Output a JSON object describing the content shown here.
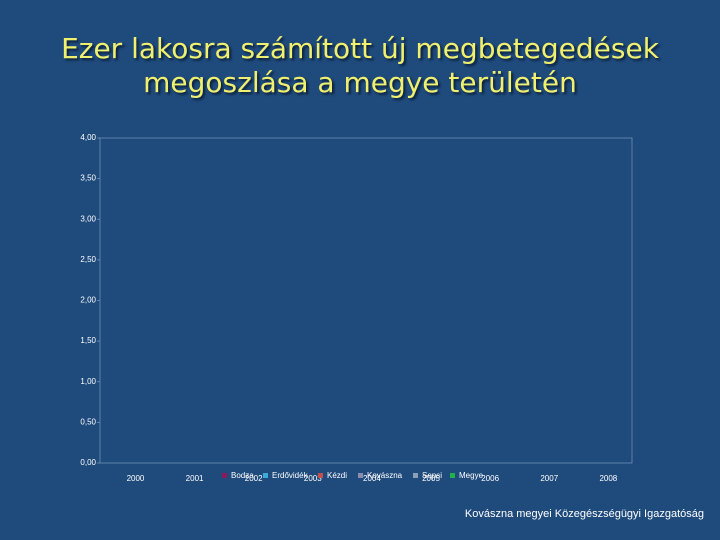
{
  "chart_data": {
    "type": "line",
    "title": "Ezer lakosra számított új megbetegedések megoszlása a megye területén",
    "categories": [
      "2000",
      "2001",
      "2002",
      "2003",
      "2004",
      "2005",
      "2006",
      "2007",
      "2008"
    ],
    "series": [
      {
        "name": "Bodza",
        "color": "#8b1a5a",
        "values": [
          null,
          null,
          null,
          null,
          null,
          null,
          null,
          null,
          null
        ]
      },
      {
        "name": "Erdővidék",
        "color": "#3fa9d6",
        "values": [
          null,
          null,
          null,
          null,
          null,
          null,
          null,
          null,
          null
        ]
      },
      {
        "name": "Kézdi",
        "color": "#c0504d",
        "values": [
          null,
          null,
          null,
          null,
          null,
          null,
          null,
          null,
          null
        ]
      },
      {
        "name": "Kovászna",
        "color": "#8c8cb0",
        "values": [
          null,
          null,
          null,
          null,
          null,
          null,
          null,
          null,
          null
        ]
      },
      {
        "name": "Sepsi",
        "color": "#8aa0b8",
        "values": [
          null,
          null,
          null,
          null,
          null,
          null,
          null,
          null,
          null
        ]
      },
      {
        "name": "Megye",
        "color": "#22b04a",
        "values": [
          null,
          null,
          null,
          null,
          null,
          null,
          null,
          null,
          null
        ]
      }
    ],
    "ylim": [
      0,
      4
    ],
    "yticks": [
      {
        "value": 0,
        "label": "0,00"
      },
      {
        "value": 0.5,
        "label": "0,50"
      },
      {
        "value": 1,
        "label": "1,00"
      },
      {
        "value": 1.5,
        "label": "1,50"
      },
      {
        "value": 2,
        "label": "2,00"
      },
      {
        "value": 2.5,
        "label": "2,50"
      },
      {
        "value": 3,
        "label": "3,00"
      },
      {
        "value": 3.5,
        "label": "3,50"
      },
      {
        "value": 4,
        "label": "4,00"
      }
    ],
    "grid": false,
    "legend": "bottom",
    "footer": "Kovászna megyei Közegészségügyi Igazgatóság"
  }
}
